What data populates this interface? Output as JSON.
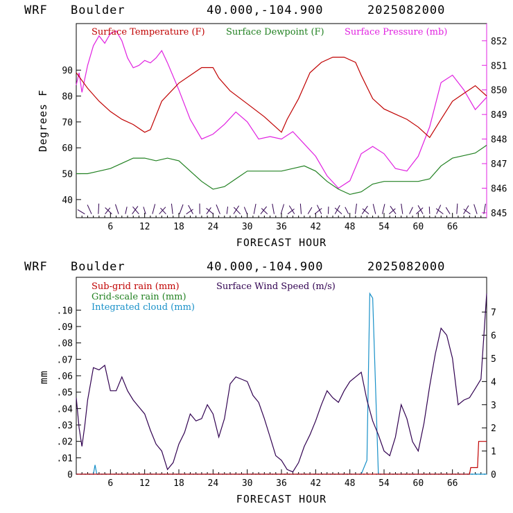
{
  "colors": {
    "temperature": "#c00000",
    "dewpoint": "#208020",
    "pressure": "#e020e0",
    "wind": "#300050",
    "subgrid_rain": "#c00000",
    "gridscale_rain": "#208020",
    "cloud": "#1890c8",
    "axis": "#000000",
    "pressure_axis": "#e020e0"
  },
  "chart_data": [
    {
      "type": "line",
      "header": {
        "model": "WRF",
        "location": "Boulder",
        "coords": "40.000,-104.900",
        "date": "2025082000"
      },
      "xlabel": "FORECAST HOUR",
      "ylabel": "Degrees F",
      "xlim": [
        0,
        72
      ],
      "ylim": [
        33,
        108
      ],
      "y2lim": [
        844.8,
        852.7
      ],
      "x_ticks": [
        "6",
        "12",
        "18",
        "24",
        "30",
        "36",
        "42",
        "48",
        "54",
        "60",
        "66"
      ],
      "y_ticks": [
        "40",
        "50",
        "60",
        "70",
        "80",
        "90"
      ],
      "y2_ticks": [
        "845",
        "846",
        "847",
        "848",
        "849",
        "850",
        "851",
        "852"
      ],
      "legend": [
        "Surface Temperature (F)",
        "Surface Dewpoint (F)",
        "Surface Pressure (mb)"
      ],
      "series": [
        {
          "name": "Surface Temperature (F)",
          "axis": "left",
          "x": [
            0,
            2,
            4,
            6,
            8,
            10,
            12,
            13,
            15,
            18,
            20,
            22,
            24,
            25,
            27,
            30,
            33,
            36,
            37,
            39,
            41,
            43,
            45,
            47,
            49,
            50,
            52,
            54,
            56,
            58,
            60,
            62,
            64,
            66,
            68,
            70,
            71,
            72
          ],
          "values": [
            89,
            83,
            78,
            74,
            71,
            69,
            66,
            67,
            78,
            85,
            88,
            91,
            91,
            87,
            82,
            77,
            72,
            66,
            71,
            79,
            89,
            93,
            95,
            95,
            93,
            88,
            79,
            75,
            73,
            71,
            68,
            64,
            71,
            78,
            81,
            84,
            82,
            80
          ]
        },
        {
          "name": "Surface Dewpoint (F)",
          "axis": "left",
          "x": [
            0,
            2,
            4,
            6,
            8,
            10,
            12,
            14,
            16,
            18,
            20,
            22,
            24,
            26,
            28,
            30,
            32,
            34,
            36,
            38,
            40,
            42,
            44,
            46,
            48,
            50,
            52,
            54,
            56,
            58,
            60,
            62,
            64,
            66,
            68,
            70,
            72
          ],
          "values": [
            50,
            50,
            51,
            52,
            54,
            56,
            56,
            55,
            56,
            55,
            51,
            47,
            44,
            45,
            48,
            51,
            51,
            51,
            51,
            52,
            53,
            51,
            47,
            44,
            42,
            43,
            46,
            47,
            47,
            47,
            47,
            48,
            53,
            56,
            57,
            58,
            61
          ]
        },
        {
          "name": "Surface Pressure (mb)",
          "axis": "right",
          "x": [
            0,
            0.5,
            1,
            2,
            3,
            4,
            5,
            6,
            7,
            8,
            9,
            10,
            11,
            12,
            13,
            14,
            15,
            16,
            18,
            20,
            22,
            24,
            26,
            28,
            30,
            32,
            34,
            36,
            38,
            40,
            42,
            44,
            46,
            48,
            50,
            52,
            54,
            56,
            58,
            60,
            62,
            64,
            66,
            68,
            70,
            72
          ],
          "values": [
            850.2,
            850.7,
            849.9,
            851.0,
            851.8,
            852.2,
            851.9,
            852.3,
            852.4,
            852.0,
            851.3,
            850.9,
            851.0,
            851.2,
            851.1,
            851.3,
            851.6,
            851.1,
            850.0,
            848.8,
            848.0,
            848.2,
            848.6,
            849.1,
            848.7,
            848.0,
            848.1,
            848.0,
            848.3,
            847.8,
            847.3,
            846.5,
            846.0,
            846.3,
            847.4,
            847.7,
            847.4,
            846.8,
            846.7,
            847.3,
            848.5,
            850.3,
            850.6,
            850.0,
            849.2,
            849.7
          ]
        },
        {
          "name": "Wind barbs",
          "x_start": 1.5,
          "x_end": 71.5,
          "count": 60
        }
      ]
    },
    {
      "type": "line",
      "header": {
        "model": "WRF",
        "location": "Boulder",
        "coords": "40.000,-104.900",
        "date": "2025082000"
      },
      "xlabel": "FORECAST HOUR",
      "ylabel": "mm",
      "xlim": [
        0,
        72
      ],
      "ylim": [
        0,
        0.12
      ],
      "y2lim": [
        0,
        8.5
      ],
      "x_ticks": [
        "6",
        "12",
        "18",
        "24",
        "30",
        "36",
        "42",
        "48",
        "54",
        "60",
        "66"
      ],
      "y_ticks": [
        "0",
        ".01",
        ".02",
        ".03",
        ".04",
        ".05",
        ".06",
        ".07",
        ".08",
        ".09",
        ".10"
      ],
      "y2_ticks": [
        "0",
        "1",
        "2",
        "3",
        "4",
        "5",
        "6",
        "7"
      ],
      "legend": [
        "Sub-grid rain (mm)",
        "Grid-scale rain (mm)",
        "Integrated cloud (mm)",
        "Surface Wind Speed (m/s)"
      ],
      "series": [
        {
          "name": "Surface Wind Speed (m/s)",
          "axis": "right",
          "x": [
            0,
            0.5,
            1,
            1.5,
            2,
            3,
            4,
            5,
            6,
            7,
            8,
            9,
            10,
            11,
            12,
            13,
            14,
            15,
            16,
            17,
            18,
            19,
            20,
            21,
            22,
            23,
            24,
            25,
            26,
            27,
            28,
            29,
            30,
            31,
            32,
            33,
            34,
            35,
            36,
            37,
            38,
            39,
            40,
            41,
            42,
            43,
            44,
            45,
            46,
            47,
            48,
            49,
            50,
            51,
            52,
            53,
            54,
            55,
            56,
            57,
            58,
            59,
            60,
            61,
            62,
            63,
            64,
            65,
            66,
            67,
            68,
            69,
            70,
            71,
            72
          ],
          "values": [
            3.3,
            2.0,
            1.2,
            2.1,
            3.2,
            4.6,
            4.5,
            4.7,
            3.6,
            3.6,
            4.2,
            3.6,
            3.2,
            2.9,
            2.6,
            1.9,
            1.3,
            1.0,
            0.2,
            0.5,
            1.3,
            1.8,
            2.6,
            2.3,
            2.4,
            3.0,
            2.6,
            1.6,
            2.4,
            3.9,
            4.2,
            4.1,
            4.0,
            3.4,
            3.1,
            2.4,
            1.6,
            0.8,
            0.6,
            0.2,
            0.1,
            0.5,
            1.2,
            1.7,
            2.3,
            3.0,
            3.6,
            3.3,
            3.1,
            3.6,
            4.0,
            4.2,
            4.4,
            3.2,
            2.3,
            1.7,
            1.0,
            0.8,
            1.6,
            3.0,
            2.4,
            1.4,
            1.0,
            2.2,
            3.8,
            5.2,
            6.3,
            6.0,
            5.0,
            3.0,
            3.2,
            3.3,
            3.7,
            4.1,
            7.8
          ]
        },
        {
          "name": "Integrated cloud (mm)",
          "axis": "right",
          "x": [
            0,
            3,
            3.3,
            3.6,
            50,
            51,
            51.5,
            52,
            53,
            72
          ],
          "values": [
            0,
            0,
            0.4,
            0,
            0,
            0.6,
            7.8,
            7.6,
            0,
            0
          ]
        },
        {
          "name": "Sub-grid rain (mm)",
          "axis": "left",
          "x": [
            0,
            69,
            69.2,
            70.4,
            70.6,
            72
          ],
          "values": [
            0,
            0,
            0.004,
            0.004,
            0.02,
            0.02
          ]
        },
        {
          "name": "Grid-scale rain (mm)",
          "axis": "left",
          "x": [
            0,
            72
          ],
          "values": [
            0,
            0
          ]
        }
      ]
    }
  ]
}
